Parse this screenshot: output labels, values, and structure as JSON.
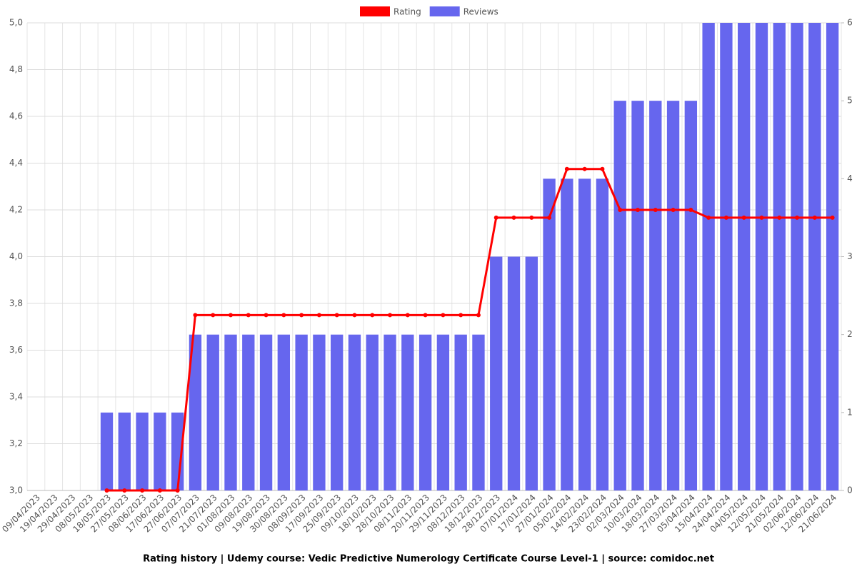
{
  "chart_data": {
    "type": "bar-line",
    "title": "Rating history | Udemy course: Vedic Predictive Numerology Certificate Course Level-1 | source: comidoc.net",
    "categories": [
      "09/04/2023",
      "19/04/2023",
      "29/04/2023",
      "08/05/2023",
      "18/05/2023",
      "27/05/2023",
      "08/06/2023",
      "17/06/2023",
      "27/06/2023",
      "07/07/2023",
      "21/07/2023",
      "01/08/2023",
      "09/08/2023",
      "19/08/2023",
      "30/08/2023",
      "08/09/2023",
      "17/09/2023",
      "25/09/2023",
      "09/10/2023",
      "18/10/2023",
      "28/10/2023",
      "08/11/2023",
      "20/11/2023",
      "29/11/2023",
      "08/12/2023",
      "18/12/2023",
      "28/12/2023",
      "07/01/2024",
      "17/01/2024",
      "27/01/2024",
      "05/02/2024",
      "14/02/2024",
      "23/02/2024",
      "02/03/2024",
      "10/03/2024",
      "18/03/2024",
      "27/03/2024",
      "05/04/2024",
      "15/04/2024",
      "24/04/2024",
      "04/05/2024",
      "12/05/2024",
      "21/05/2024",
      "02/06/2024",
      "12/06/2024",
      "21/06/2024"
    ],
    "series": [
      {
        "name": "Rating",
        "color": "#ff0000",
        "kind": "line",
        "axis": "y",
        "values": [
          null,
          null,
          null,
          null,
          3.0,
          3.0,
          3.0,
          3.0,
          3.0,
          3.75,
          3.75,
          3.75,
          3.75,
          3.75,
          3.75,
          3.75,
          3.75,
          3.75,
          3.75,
          3.75,
          3.75,
          3.75,
          3.75,
          3.75,
          3.75,
          3.75,
          4.1667,
          4.1667,
          4.1667,
          4.1667,
          4.375,
          4.375,
          4.375,
          4.2,
          4.2,
          4.2,
          4.2,
          4.2,
          4.1667,
          4.1667,
          4.1667,
          4.1667,
          4.1667,
          4.1667,
          4.1667,
          4.1667
        ]
      },
      {
        "name": "Reviews",
        "color": "#6666ee",
        "kind": "bar",
        "axis": "y2",
        "values": [
          0,
          0,
          0,
          0,
          1,
          1,
          1,
          1,
          1,
          2,
          2,
          2,
          2,
          2,
          2,
          2,
          2,
          2,
          2,
          2,
          2,
          2,
          2,
          2,
          2,
          2,
          3,
          3,
          3,
          4,
          4,
          4,
          4,
          5,
          5,
          5,
          5,
          5,
          6,
          6,
          6,
          6,
          6,
          6,
          6,
          6
        ]
      }
    ],
    "ylim": [
      3,
      5
    ],
    "yticks": [
      {
        "value": 3,
        "label": "3,0"
      },
      {
        "value": 3.2,
        "label": "3,2"
      },
      {
        "value": 3.4,
        "label": "3,4"
      },
      {
        "value": 3.6,
        "label": "3,6"
      },
      {
        "value": 3.8,
        "label": "3,8"
      },
      {
        "value": 4,
        "label": "4,0"
      },
      {
        "value": 4.2,
        "label": "4,2"
      },
      {
        "value": 4.4,
        "label": "4,4"
      },
      {
        "value": 4.6,
        "label": "4,6"
      },
      {
        "value": 4.8,
        "label": "4,8"
      },
      {
        "value": 5,
        "label": "5,0"
      }
    ],
    "y2lim": [
      0,
      6
    ],
    "y2ticks": [
      0,
      1,
      2,
      3,
      4,
      5,
      6
    ],
    "grid": true
  }
}
